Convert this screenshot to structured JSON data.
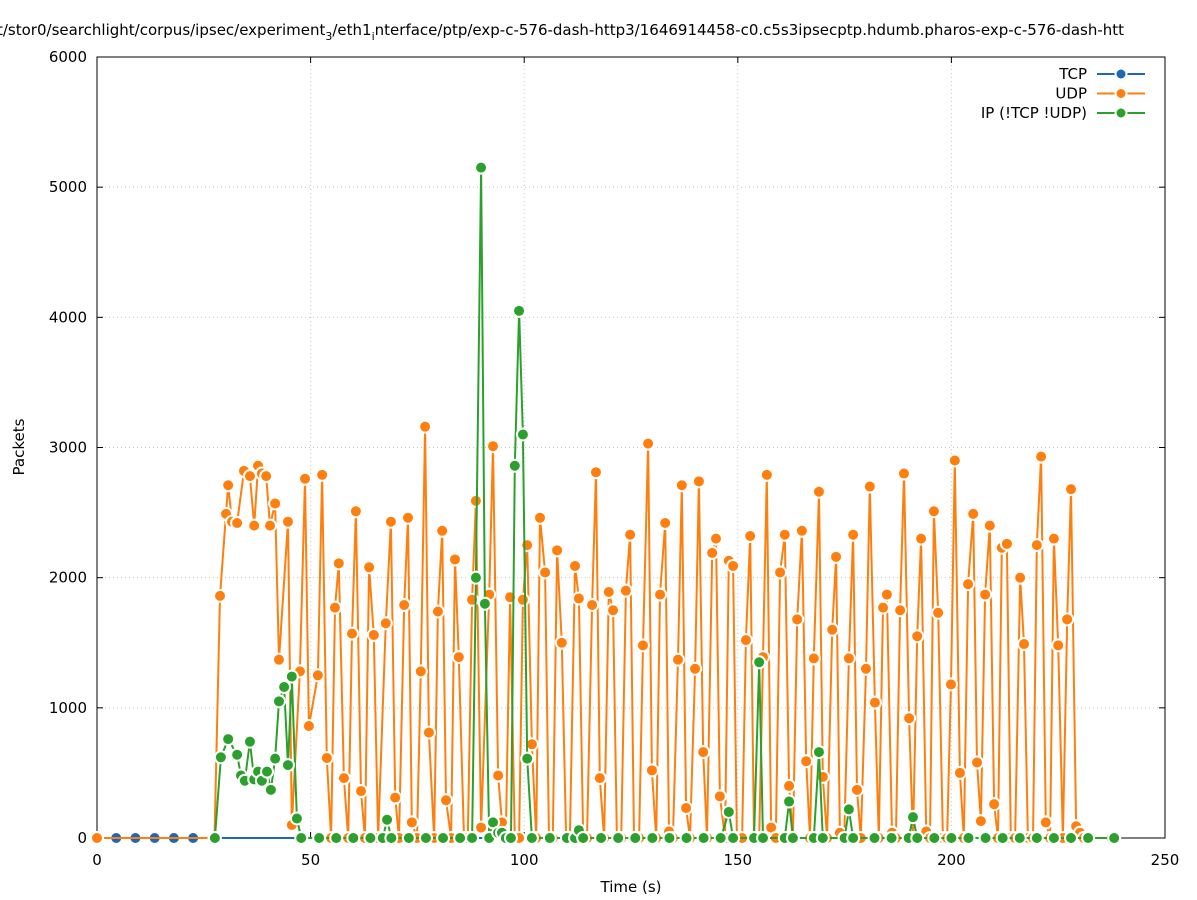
{
  "chart_data": {
    "type": "line",
    "title_parts": [
      "t/stor0/searchlight/corpus/ipsec/experiment",
      "3",
      "/eth1",
      "i",
      "nterface/ptp/exp-c-576-dash-http3/1646914458-c0.c5s3ipsecptp.hdumb.pharos-exp-c-576-dash-htt"
    ],
    "xlabel": "Time (s)",
    "ylabel": "Packets",
    "xlim": [
      0,
      250
    ],
    "ylim": [
      0,
      6000
    ],
    "xticks": [
      0,
      50,
      100,
      150,
      200,
      250
    ],
    "yticks": [
      0,
      1000,
      2000,
      3000,
      4000,
      5000,
      6000
    ],
    "grid": true,
    "legend_position": "top-right",
    "series": [
      {
        "name": "TCP",
        "color": "#1f66b8",
        "points": [
          [
            0,
            0
          ],
          [
            4.5,
            0
          ],
          [
            9,
            0
          ],
          [
            13.5,
            0
          ],
          [
            18,
            0
          ],
          [
            22.5,
            0
          ],
          [
            27,
            0
          ],
          [
            237.5,
            0
          ]
        ]
      },
      {
        "name": "UDP",
        "color": "#ff7f0e",
        "points": [
          [
            0,
            0
          ],
          [
            27.5,
            0
          ],
          [
            28.8,
            1860
          ],
          [
            30.2,
            2490
          ],
          [
            30.7,
            2710
          ],
          [
            31.6,
            2430
          ],
          [
            32.8,
            2420
          ],
          [
            34.4,
            2820
          ],
          [
            35.8,
            2780
          ],
          [
            36.8,
            2400
          ],
          [
            37.7,
            2860
          ],
          [
            38.6,
            2800
          ],
          [
            39.6,
            2780
          ],
          [
            40.5,
            2400
          ],
          [
            41.7,
            2570
          ],
          [
            42.6,
            1370
          ],
          [
            44.7,
            2430
          ],
          [
            45.6,
            100
          ],
          [
            47.5,
            1280
          ],
          [
            48.7,
            2760
          ],
          [
            49.6,
            860
          ],
          [
            51.7,
            1250
          ],
          [
            52.7,
            2790
          ],
          [
            53.8,
            615
          ],
          [
            54.8,
            0
          ],
          [
            55.7,
            1770
          ],
          [
            56.6,
            2110
          ],
          [
            57.8,
            460
          ],
          [
            58.8,
            0
          ],
          [
            59.7,
            1570
          ],
          [
            60.6,
            2510
          ],
          [
            61.8,
            360
          ],
          [
            62.7,
            0
          ],
          [
            63.7,
            2080
          ],
          [
            64.8,
            1560
          ],
          [
            65.8,
            0
          ],
          [
            67.6,
            1650
          ],
          [
            68.8,
            2430
          ],
          [
            69.8,
            310
          ],
          [
            70.7,
            0
          ],
          [
            71.9,
            1790
          ],
          [
            72.8,
            2460
          ],
          [
            73.7,
            120
          ],
          [
            74.9,
            0
          ],
          [
            75.8,
            1280
          ],
          [
            76.8,
            3160
          ],
          [
            77.7,
            810
          ],
          [
            78.9,
            0
          ],
          [
            79.8,
            1740
          ],
          [
            80.8,
            2360
          ],
          [
            81.7,
            290
          ],
          [
            82.9,
            0
          ],
          [
            83.8,
            2140
          ],
          [
            84.7,
            1390
          ],
          [
            85.9,
            0
          ],
          [
            86.8,
            0
          ],
          [
            87.8,
            1830
          ],
          [
            88.7,
            2590
          ],
          [
            89.9,
            80
          ],
          [
            91.8,
            1870
          ],
          [
            92.7,
            3010
          ],
          [
            93.9,
            480
          ],
          [
            94.8,
            120
          ],
          [
            95.7,
            0
          ],
          [
            96.7,
            1850
          ],
          [
            97.8,
            0
          ],
          [
            98.8,
            0
          ],
          [
            99.7,
            1830
          ],
          [
            100.7,
            2250
          ],
          [
            101.8,
            720
          ],
          [
            102.8,
            0
          ],
          [
            103.7,
            2460
          ],
          [
            104.9,
            2040
          ],
          [
            105.8,
            0
          ],
          [
            106.7,
            0
          ],
          [
            107.7,
            2210
          ],
          [
            108.8,
            1500
          ],
          [
            109.8,
            0
          ],
          [
            110.7,
            0
          ],
          [
            111.9,
            2090
          ],
          [
            112.8,
            1840
          ],
          [
            113.8,
            0
          ],
          [
            114.7,
            0
          ],
          [
            115.9,
            1790
          ],
          [
            116.8,
            2810
          ],
          [
            117.7,
            460
          ],
          [
            118.7,
            0
          ],
          [
            119.8,
            1890
          ],
          [
            120.8,
            1750
          ],
          [
            121.7,
            0
          ],
          [
            122.7,
            0
          ],
          [
            123.8,
            1900
          ],
          [
            124.8,
            2330
          ],
          [
            125.7,
            0
          ],
          [
            126.9,
            0
          ],
          [
            127.8,
            1480
          ],
          [
            129.0,
            3030
          ],
          [
            129.9,
            520
          ],
          [
            130.9,
            0
          ],
          [
            131.8,
            1870
          ],
          [
            133.0,
            2420
          ],
          [
            133.9,
            50
          ],
          [
            134.8,
            0
          ],
          [
            136.0,
            1370
          ],
          [
            136.9,
            2710
          ],
          [
            137.9,
            230
          ],
          [
            138.8,
            0
          ],
          [
            140.0,
            1300
          ],
          [
            140.9,
            2740
          ],
          [
            141.9,
            660
          ],
          [
            142.8,
            0
          ],
          [
            144.0,
            2190
          ],
          [
            144.9,
            2300
          ],
          [
            145.8,
            320
          ],
          [
            147.0,
            0
          ],
          [
            147.9,
            2130
          ],
          [
            148.9,
            2090
          ],
          [
            149.8,
            0
          ],
          [
            151.0,
            0
          ],
          [
            151.9,
            1520
          ],
          [
            152.9,
            2320
          ],
          [
            153.8,
            0
          ],
          [
            155.0,
            0
          ],
          [
            155.9,
            1390
          ],
          [
            156.8,
            2790
          ],
          [
            157.8,
            80
          ],
          [
            158.9,
            0
          ],
          [
            159.9,
            2040
          ],
          [
            161.0,
            2330
          ],
          [
            162.0,
            400
          ],
          [
            162.9,
            0
          ],
          [
            163.9,
            1680
          ],
          [
            165.0,
            2360
          ],
          [
            166.0,
            590
          ],
          [
            166.9,
            0
          ],
          [
            167.8,
            1380
          ],
          [
            169.0,
            2660
          ],
          [
            169.9,
            470
          ],
          [
            170.9,
            0
          ],
          [
            172.1,
            1600
          ],
          [
            173.0,
            2160
          ],
          [
            173.9,
            40
          ],
          [
            174.9,
            0
          ],
          [
            176.0,
            1380
          ],
          [
            177.0,
            2330
          ],
          [
            177.9,
            370
          ],
          [
            178.8,
            0
          ],
          [
            180.0,
            1300
          ],
          [
            180.9,
            2700
          ],
          [
            182.1,
            1040
          ],
          [
            183.0,
            0
          ],
          [
            184.0,
            1770
          ],
          [
            184.9,
            1870
          ],
          [
            186.1,
            40
          ],
          [
            187.0,
            0
          ],
          [
            188.0,
            1750
          ],
          [
            188.9,
            2800
          ],
          [
            190.1,
            920
          ],
          [
            191.0,
            0
          ],
          [
            192.0,
            1550
          ],
          [
            192.9,
            2300
          ],
          [
            194.1,
            50
          ],
          [
            195.0,
            0
          ],
          [
            195.9,
            2510
          ],
          [
            196.9,
            1730
          ],
          [
            198.0,
            0
          ],
          [
            199.0,
            0
          ],
          [
            199.9,
            1180
          ],
          [
            200.8,
            2900
          ],
          [
            202.0,
            500
          ],
          [
            202.9,
            0
          ],
          [
            203.9,
            1950
          ],
          [
            205.1,
            2490
          ],
          [
            206.0,
            580
          ],
          [
            206.9,
            130
          ],
          [
            207.9,
            1870
          ],
          [
            209.0,
            2400
          ],
          [
            210.0,
            260
          ],
          [
            210.9,
            0
          ],
          [
            211.8,
            2230
          ],
          [
            213.0,
            2260
          ],
          [
            213.9,
            0
          ],
          [
            214.9,
            0
          ],
          [
            216.1,
            2000
          ],
          [
            217.0,
            1490
          ],
          [
            217.9,
            0
          ],
          [
            219.1,
            0
          ],
          [
            220.0,
            2250
          ],
          [
            221.0,
            2930
          ],
          [
            222.1,
            120
          ],
          [
            223.1,
            0
          ],
          [
            224.0,
            2300
          ],
          [
            225.0,
            1480
          ],
          [
            226.1,
            0
          ],
          [
            227.1,
            1680
          ],
          [
            228.0,
            2680
          ],
          [
            229.2,
            90
          ],
          [
            230.1,
            40
          ],
          [
            231.0,
            0
          ],
          [
            237.5,
            0
          ]
        ]
      },
      {
        "name": "IP (!TCP  !UDP)",
        "color": "#2ca02c",
        "points": [
          [
            27.6,
            0
          ],
          [
            29.0,
            620
          ],
          [
            30.7,
            760
          ],
          [
            32.8,
            640
          ],
          [
            33.7,
            480
          ],
          [
            34.6,
            440
          ],
          [
            35.8,
            740
          ],
          [
            36.8,
            450
          ],
          [
            37.7,
            510
          ],
          [
            38.6,
            440
          ],
          [
            39.8,
            510
          ],
          [
            40.7,
            370
          ],
          [
            41.7,
            610
          ],
          [
            42.6,
            1050
          ],
          [
            43.8,
            1160
          ],
          [
            44.7,
            560
          ],
          [
            45.6,
            1240
          ],
          [
            46.8,
            150
          ],
          [
            47.8,
            0
          ],
          [
            52,
            0
          ],
          [
            56,
            0
          ],
          [
            60,
            0
          ],
          [
            64,
            0
          ],
          [
            66.9,
            0
          ],
          [
            67.9,
            140
          ],
          [
            68.9,
            0
          ],
          [
            73,
            0
          ],
          [
            77,
            0
          ],
          [
            81,
            0
          ],
          [
            85,
            0
          ],
          [
            87.8,
            0
          ],
          [
            88.7,
            2000
          ],
          [
            89.9,
            5150
          ],
          [
            90.8,
            1800
          ],
          [
            91.8,
            0
          ],
          [
            92.7,
            120
          ],
          [
            93.9,
            40
          ],
          [
            94.8,
            40
          ],
          [
            95.7,
            0
          ],
          [
            96.9,
            0
          ],
          [
            97.8,
            2860
          ],
          [
            98.8,
            4050
          ],
          [
            99.7,
            3100
          ],
          [
            100.7,
            610
          ],
          [
            101.8,
            0
          ],
          [
            106,
            0
          ],
          [
            110,
            0
          ],
          [
            111.9,
            0
          ],
          [
            112.8,
            60
          ],
          [
            113.8,
            0
          ],
          [
            118,
            0
          ],
          [
            122,
            0
          ],
          [
            126,
            0
          ],
          [
            130,
            0
          ],
          [
            134,
            0
          ],
          [
            138,
            0
          ],
          [
            142,
            0
          ],
          [
            146,
            0
          ],
          [
            147.9,
            200
          ],
          [
            148.9,
            0
          ],
          [
            153.8,
            0
          ],
          [
            155.0,
            1350
          ],
          [
            155.9,
            0
          ],
          [
            161,
            0
          ],
          [
            162.0,
            280
          ],
          [
            162.9,
            0
          ],
          [
            167.8,
            0
          ],
          [
            169.0,
            660
          ],
          [
            169.9,
            0
          ],
          [
            175,
            0
          ],
          [
            176.0,
            220
          ],
          [
            177.0,
            0
          ],
          [
            182,
            0
          ],
          [
            186,
            0
          ],
          [
            190,
            0
          ],
          [
            191.0,
            160
          ],
          [
            192.0,
            0
          ],
          [
            196,
            0
          ],
          [
            200,
            0
          ],
          [
            204,
            0
          ],
          [
            208,
            0
          ],
          [
            212,
            0
          ],
          [
            216,
            0
          ],
          [
            220,
            0
          ],
          [
            224,
            0
          ],
          [
            228,
            0
          ],
          [
            232,
            0
          ],
          [
            238.1,
            0
          ]
        ]
      }
    ]
  }
}
